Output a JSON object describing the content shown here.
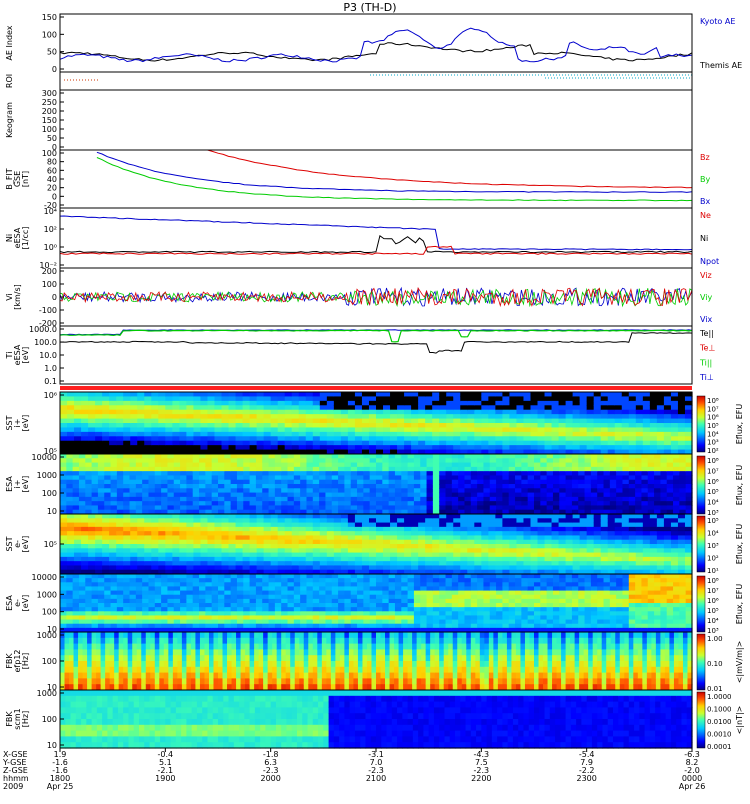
{
  "title": "P3 (TH-D)",
  "colors": {
    "blue": "#0000cc",
    "red": "#dd0000",
    "green": "#00cc00",
    "black": "#000000",
    "dot_red": "#cc3300",
    "dot_cyan": "#00aacc"
  },
  "panels": [
    {
      "key": "ae",
      "ylabel": [
        "AE Index"
      ],
      "ticks": [
        "150",
        "100",
        "50",
        "0"
      ],
      "legend": [
        {
          "text": "Kyoto AE",
          "color": "blue"
        },
        {
          "text": "Themis AE",
          "color": "black"
        }
      ]
    },
    {
      "key": "roi",
      "ylabel": [
        "ROI"
      ],
      "ticks": [],
      "legend": []
    },
    {
      "key": "keogram",
      "ylabel": [
        "Keogram"
      ],
      "ticks": [
        "300",
        "250",
        "200",
        "150",
        "100",
        "50",
        "0"
      ],
      "legend": []
    },
    {
      "key": "bfield",
      "ylabel": [
        "B_FIT",
        "GSE",
        "[nT]"
      ],
      "ticks": [
        "100",
        "80",
        "60",
        "40",
        "20",
        "0",
        "-20"
      ],
      "legend": [
        {
          "text": "Bz",
          "color": "red"
        },
        {
          "text": "By",
          "color": "green"
        },
        {
          "text": "Bx",
          "color": "blue"
        }
      ]
    },
    {
      "key": "density",
      "ylabel": [
        "Ni",
        "eESA",
        "[1/cc]"
      ],
      "ticks": [
        "10⁴",
        "10²",
        "10⁰",
        "10⁻²"
      ],
      "legend": [
        {
          "text": "Ne",
          "color": "red"
        },
        {
          "text": "Ni",
          "color": "black"
        },
        {
          "text": "Npot",
          "color": "blue"
        }
      ]
    },
    {
      "key": "velocity",
      "ylabel": [
        "Vi",
        "[km/s]"
      ],
      "ticks": [
        "200",
        "100",
        "0",
        "-100",
        "-200"
      ],
      "legend": [
        {
          "text": "Viz",
          "color": "red"
        },
        {
          "text": "Viy",
          "color": "green"
        },
        {
          "text": "Vix",
          "color": "blue"
        }
      ]
    },
    {
      "key": "temp",
      "ylabel": [
        "Ti",
        "eESA",
        "[eV]"
      ],
      "ticks": [
        "1000.0",
        "100.0",
        "10.0",
        "1.0",
        "0.1"
      ],
      "legend": [
        {
          "text": "Te||",
          "color": "black"
        },
        {
          "text": "Te⊥",
          "color": "red"
        },
        {
          "text": "Ti||",
          "color": "green"
        },
        {
          "text": "Ti⊥",
          "color": "blue"
        }
      ]
    },
    {
      "key": "sst_i",
      "ylabel": [
        "SST",
        "i+",
        "[eV]"
      ],
      "ticks": [
        "10⁶",
        "10⁵"
      ],
      "legend": []
    },
    {
      "key": "esa_i",
      "ylabel": [
        "ESA",
        "i+",
        "[eV]"
      ],
      "ticks": [
        "10000",
        "1000",
        "100",
        "10"
      ],
      "legend": []
    },
    {
      "key": "sst_e",
      "ylabel": [
        "SST",
        "e-",
        "[eV]"
      ],
      "ticks": [
        "10⁵"
      ],
      "legend": []
    },
    {
      "key": "esa_e",
      "ylabel": [
        "ESA",
        "e-",
        "[eV]"
      ],
      "ticks": [
        "10000",
        "1000",
        "100",
        "10"
      ],
      "legend": []
    },
    {
      "key": "fbk_e",
      "ylabel": [
        "FBK",
        "efp12",
        "[Hz]"
      ],
      "ticks": [
        "1000",
        "100",
        "10"
      ],
      "legend": []
    },
    {
      "key": "fbk_b",
      "ylabel": [
        "FBK",
        "scm1",
        "[Hz]"
      ],
      "ticks": [
        "1000",
        "100",
        "10"
      ],
      "legend": []
    }
  ],
  "colorbars": [
    {
      "key": "cb_sst_i",
      "labels": [
        "10⁸",
        "10⁷",
        "10⁶",
        "10⁵",
        "10⁴",
        "10³",
        "10²"
      ],
      "caption": "Eflux, EFU"
    },
    {
      "key": "cb_esa_i",
      "labels": [
        "10⁸",
        "10⁷",
        "10⁶",
        "10⁵",
        "10⁴",
        "10³"
      ],
      "caption": "Eflux, EFU"
    },
    {
      "key": "cb_sst_e",
      "labels": [
        "10⁵",
        "10⁴",
        "10³",
        "10²",
        "10¹"
      ],
      "caption": "Eflux, EFU"
    },
    {
      "key": "cb_esa_e",
      "labels": [
        "10⁸",
        "10⁷",
        "10⁶",
        "10⁵",
        "10⁴",
        "10³"
      ],
      "caption": "Eflux, EFU"
    },
    {
      "key": "cb_fbk_e",
      "labels": [
        "1.00",
        "0.10",
        "0.01"
      ],
      "caption": "<|mV/m|>"
    },
    {
      "key": "cb_fbk_b",
      "labels": [
        "1.0000",
        "0.1000",
        "0.0100",
        "0.0010",
        "0.0001"
      ],
      "caption": "<|nT|>"
    }
  ],
  "xaxis": {
    "row_labels": [
      "X-GSE",
      "Y-GSE",
      "Z-GSE",
      "hhmm",
      "2009"
    ],
    "columns": [
      [
        "1.9",
        "-1.6",
        "-1.6",
        "1800",
        "Apr 25"
      ],
      [
        "-0.4",
        "5.1",
        "-2.1",
        "1900",
        ""
      ],
      [
        "-1.8",
        "6.3",
        "-2.3",
        "2000",
        ""
      ],
      [
        "-3.1",
        "7.0",
        "-2.3",
        "2100",
        ""
      ],
      [
        "-4.3",
        "7.5",
        "-2.3",
        "2200",
        ""
      ],
      [
        "-5.4",
        "7.9",
        "-2.2",
        "2300",
        ""
      ],
      [
        "-6.3",
        "8.2",
        "-2.0",
        "0000",
        "Apr 26"
      ]
    ]
  }
}
